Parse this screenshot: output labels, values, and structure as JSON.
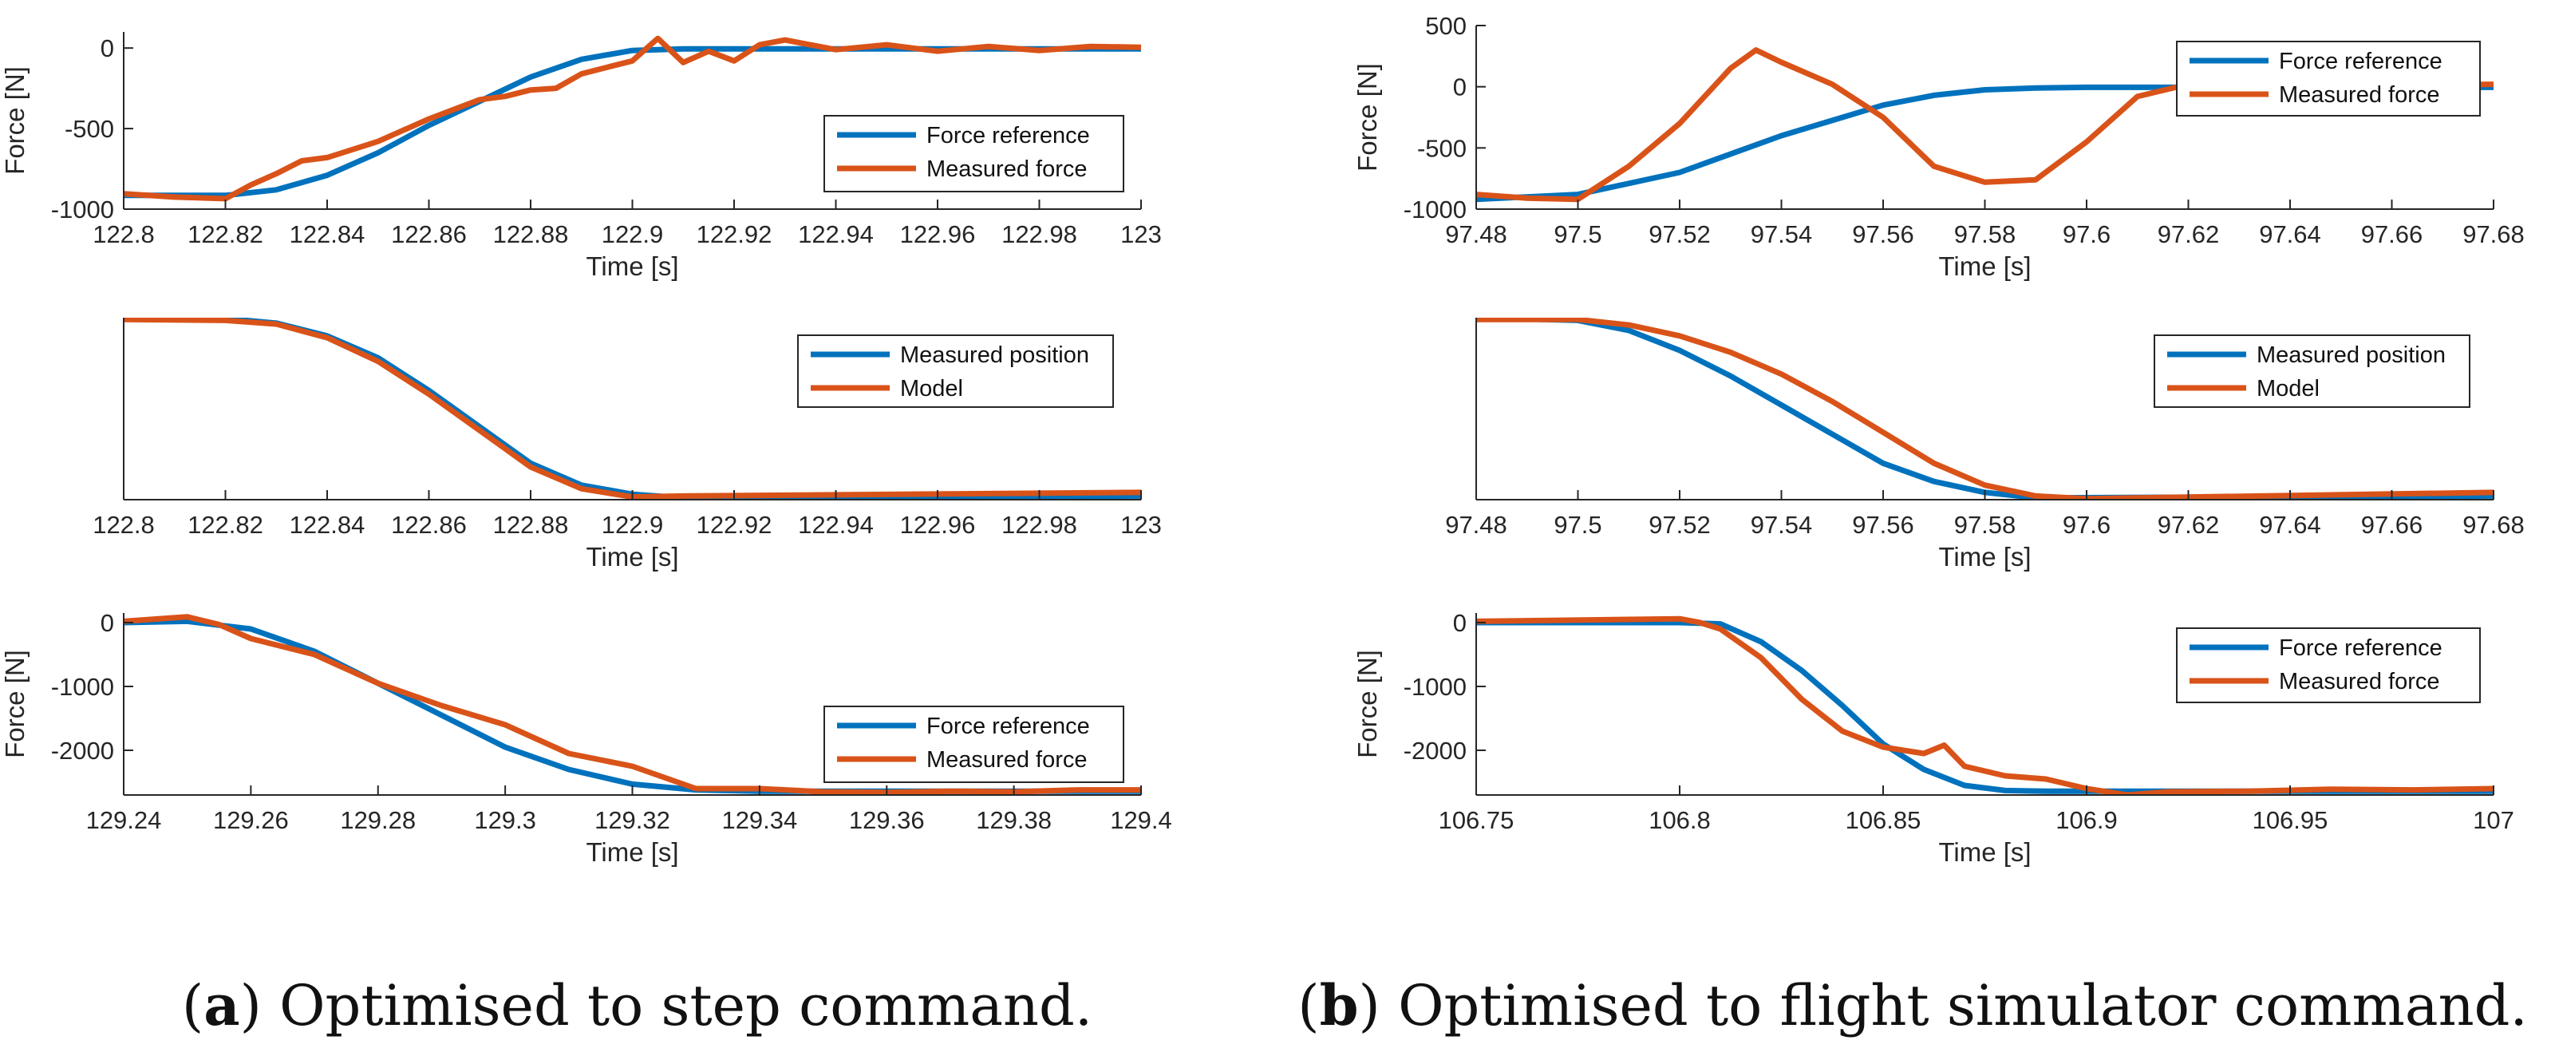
{
  "colors": {
    "blue": "#0072bd",
    "orange": "#d95319",
    "axis": "#262626",
    "text": "#262626"
  },
  "captions": {
    "a": {
      "open": "(",
      "letter": "a",
      "text": ") Optimised to step command."
    },
    "b": {
      "open": "(",
      "letter": "b",
      "text": ") Optimised to flight simulator command."
    }
  },
  "chart_data": [
    {
      "id": "a1",
      "type": "line",
      "title": "",
      "xlabel": "Time [s]",
      "ylabel": "Force [N]",
      "xlim": [
        122.8,
        123
      ],
      "ylim": [
        -1000,
        100
      ],
      "xticks": [
        122.8,
        122.82,
        122.84,
        122.86,
        122.88,
        122.9,
        122.92,
        122.94,
        122.96,
        122.98,
        123
      ],
      "yticks": [
        -1000,
        -500,
        0
      ],
      "grid": false,
      "legend_position": "bottom-right",
      "series": [
        {
          "name": "Force reference",
          "color": "#0072bd",
          "x": [
            122.8,
            122.82,
            122.83,
            122.84,
            122.85,
            122.86,
            122.87,
            122.88,
            122.89,
            122.9,
            122.91,
            123
          ],
          "y": [
            -915,
            -915,
            -880,
            -790,
            -650,
            -480,
            -330,
            -180,
            -70,
            -15,
            -5,
            -5
          ]
        },
        {
          "name": "Measured force",
          "color": "#d95319",
          "x": [
            122.8,
            122.81,
            122.82,
            122.825,
            122.83,
            122.835,
            122.84,
            122.85,
            122.86,
            122.87,
            122.875,
            122.88,
            122.885,
            122.89,
            122.895,
            122.9,
            122.905,
            122.91,
            122.915,
            122.92,
            122.925,
            122.93,
            122.94,
            122.95,
            122.96,
            122.97,
            122.98,
            122.99,
            123
          ],
          "y": [
            -905,
            -925,
            -935,
            -850,
            -780,
            -700,
            -680,
            -580,
            -440,
            -320,
            -300,
            -260,
            -250,
            -160,
            -120,
            -80,
            60,
            -90,
            -20,
            -80,
            20,
            50,
            -10,
            20,
            -20,
            10,
            -15,
            10,
            5
          ]
        }
      ]
    },
    {
      "id": "a2",
      "type": "line",
      "title": "",
      "xlabel": "Time [s]",
      "ylabel": "",
      "xlim": [
        122.8,
        123
      ],
      "ylim": [
        0,
        1
      ],
      "xticks": [
        122.8,
        122.82,
        122.84,
        122.86,
        122.88,
        122.9,
        122.92,
        122.94,
        122.96,
        122.98,
        123
      ],
      "yticks": [],
      "grid": false,
      "legend_position": "top-right",
      "series": [
        {
          "name": "Measured position",
          "color": "#0072bd",
          "x": [
            122.8,
            122.82,
            122.83,
            122.84,
            122.85,
            122.86,
            122.87,
            122.88,
            122.89,
            122.9,
            122.91,
            123
          ],
          "y": [
            1,
            0.995,
            0.97,
            0.9,
            0.78,
            0.6,
            0.4,
            0.2,
            0.08,
            0.03,
            0.01,
            0.02
          ]
        },
        {
          "name": "Model",
          "color": "#d95319",
          "x": [
            122.8,
            122.82,
            122.83,
            122.84,
            122.85,
            122.86,
            122.87,
            122.88,
            122.89,
            122.9,
            122.91,
            123
          ],
          "y": [
            0.99,
            0.985,
            0.965,
            0.89,
            0.76,
            0.58,
            0.38,
            0.18,
            0.06,
            0.015,
            0.02,
            0.04
          ]
        }
      ]
    },
    {
      "id": "a3",
      "type": "line",
      "title": "",
      "xlabel": "Time [s]",
      "ylabel": "Force [N]",
      "xlim": [
        129.24,
        129.4
      ],
      "ylim": [
        -2700,
        150
      ],
      "xticks": [
        129.24,
        129.26,
        129.28,
        129.3,
        129.32,
        129.34,
        129.36,
        129.38,
        129.4
      ],
      "yticks": [
        -2000,
        -1000,
        0
      ],
      "grid": false,
      "legend_position": "bottom-right",
      "series": [
        {
          "name": "Force reference",
          "color": "#0072bd",
          "x": [
            129.24,
            129.25,
            129.26,
            129.27,
            129.28,
            129.29,
            129.3,
            129.31,
            129.32,
            129.33,
            129.34,
            129.4
          ],
          "y": [
            0,
            20,
            -100,
            -450,
            -950,
            -1450,
            -1950,
            -2300,
            -2530,
            -2620,
            -2640,
            -2640
          ]
        },
        {
          "name": "Measured force",
          "color": "#d95319",
          "x": [
            129.24,
            129.25,
            129.255,
            129.26,
            129.27,
            129.28,
            129.29,
            129.3,
            129.31,
            129.32,
            129.33,
            129.34,
            129.35,
            129.36,
            129.37,
            129.38,
            129.39,
            129.4
          ],
          "y": [
            20,
            90,
            -30,
            -250,
            -500,
            -950,
            -1300,
            -1600,
            -2050,
            -2250,
            -2600,
            -2600,
            -2650,
            -2660,
            -2640,
            -2650,
            -2620,
            -2620
          ]
        }
      ]
    },
    {
      "id": "b1",
      "type": "line",
      "title": "",
      "xlabel": "Time [s]",
      "ylabel": "Force [N]",
      "xlim": [
        97.48,
        97.68
      ],
      "ylim": [
        -1000,
        500
      ],
      "xticks": [
        97.48,
        97.5,
        97.52,
        97.54,
        97.56,
        97.58,
        97.6,
        97.62,
        97.64,
        97.66,
        97.68
      ],
      "yticks": [
        -1000,
        -500,
        0,
        500
      ],
      "grid": false,
      "legend_position": "top-right",
      "series": [
        {
          "name": "Force reference",
          "color": "#0072bd",
          "x": [
            97.48,
            97.5,
            97.52,
            97.54,
            97.56,
            97.57,
            97.58,
            97.59,
            97.6,
            97.68
          ],
          "y": [
            -920,
            -880,
            -700,
            -400,
            -150,
            -70,
            -25,
            -10,
            -5,
            -5
          ]
        },
        {
          "name": "Measured force",
          "color": "#d95319",
          "x": [
            97.48,
            97.49,
            97.5,
            97.51,
            97.52,
            97.53,
            97.535,
            97.54,
            97.55,
            97.56,
            97.57,
            97.58,
            97.59,
            97.6,
            97.61,
            97.62,
            97.64,
            97.66,
            97.68
          ],
          "y": [
            -880,
            -910,
            -920,
            -650,
            -300,
            150,
            300,
            200,
            20,
            -250,
            -650,
            -780,
            -760,
            -450,
            -80,
            20,
            -10,
            10,
            20
          ]
        }
      ]
    },
    {
      "id": "b2",
      "type": "line",
      "title": "",
      "xlabel": "Time [s]",
      "ylabel": "",
      "xlim": [
        97.48,
        97.68
      ],
      "ylim": [
        0,
        1
      ],
      "xticks": [
        97.48,
        97.5,
        97.52,
        97.54,
        97.56,
        97.58,
        97.6,
        97.62,
        97.64,
        97.66,
        97.68
      ],
      "yticks": [],
      "grid": false,
      "legend_position": "top-right",
      "series": [
        {
          "name": "Measured position",
          "color": "#0072bd",
          "x": [
            97.48,
            97.5,
            97.51,
            97.52,
            97.53,
            97.54,
            97.55,
            97.56,
            97.57,
            97.58,
            97.59,
            97.68
          ],
          "y": [
            1,
            0.985,
            0.93,
            0.82,
            0.68,
            0.52,
            0.36,
            0.2,
            0.1,
            0.04,
            0.01,
            0.02
          ]
        },
        {
          "name": "Model",
          "color": "#d95319",
          "x": [
            97.48,
            97.5,
            97.51,
            97.52,
            97.53,
            97.54,
            97.55,
            97.56,
            97.57,
            97.58,
            97.59,
            97.6,
            97.61,
            97.68
          ],
          "y": [
            0.99,
            0.99,
            0.96,
            0.9,
            0.81,
            0.69,
            0.54,
            0.37,
            0.2,
            0.08,
            0.02,
            0.005,
            0.01,
            0.04
          ]
        }
      ]
    },
    {
      "id": "b3",
      "type": "line",
      "title": "",
      "xlabel": "Time [s]",
      "ylabel": "Force [N]",
      "xlim": [
        106.75,
        107
      ],
      "ylim": [
        -2700,
        150
      ],
      "xticks": [
        106.75,
        106.8,
        106.85,
        106.9,
        106.95,
        107
      ],
      "yticks": [
        -2000,
        -1000,
        0
      ],
      "grid": false,
      "legend_position": "top-right",
      "series": [
        {
          "name": "Force reference",
          "color": "#0072bd",
          "x": [
            106.75,
            106.8,
            106.81,
            106.82,
            106.83,
            106.84,
            106.85,
            106.86,
            106.87,
            106.88,
            106.89,
            107
          ],
          "y": [
            0,
            0,
            -20,
            -300,
            -750,
            -1300,
            -1900,
            -2300,
            -2550,
            -2630,
            -2640,
            -2640
          ]
        },
        {
          "name": "Measured force",
          "color": "#d95319",
          "x": [
            106.75,
            106.8,
            106.805,
            106.81,
            106.82,
            106.83,
            106.84,
            106.85,
            106.86,
            106.865,
            106.87,
            106.88,
            106.89,
            106.9,
            106.91,
            106.92,
            106.94,
            106.96,
            106.98,
            107
          ],
          "y": [
            20,
            60,
            0,
            -100,
            -550,
            -1200,
            -1700,
            -1950,
            -2050,
            -1920,
            -2250,
            -2400,
            -2450,
            -2600,
            -2700,
            -2650,
            -2640,
            -2610,
            -2620,
            -2600
          ]
        }
      ]
    }
  ]
}
